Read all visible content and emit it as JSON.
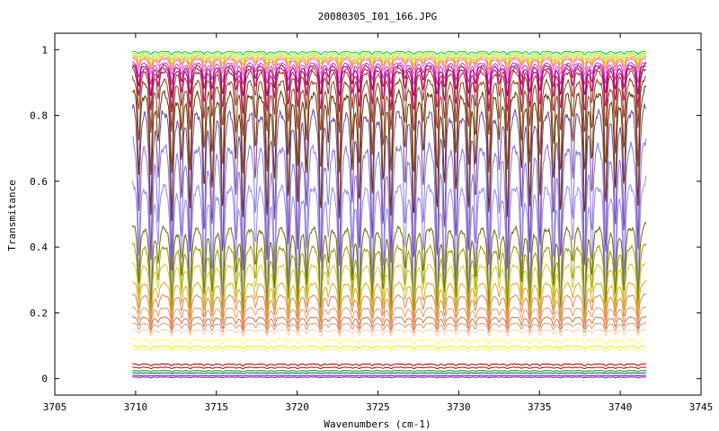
{
  "chart_data": {
    "type": "line",
    "title": "20080305_I01_166.JPG",
    "xlabel": "Wavenumbers (cm-1)",
    "ylabel": "Transmitance",
    "xlim": [
      3705,
      3745
    ],
    "ylim": [
      -0.05,
      1.05
    ],
    "xticks": [
      "3705",
      "3710",
      "3715",
      "3720",
      "3725",
      "3730",
      "3735",
      "3740",
      "3745"
    ],
    "yticks": [
      "0",
      "0.2",
      "0.4",
      "0.6",
      "0.8",
      "1"
    ],
    "x_range": [
      3709.8,
      3741.6
    ],
    "grid": false,
    "legend": "none",
    "series": [
      {
        "color": "#00cc00",
        "baseline": 0.995,
        "depth": 0.01
      },
      {
        "color": "#99ee33",
        "baseline": 0.99,
        "depth": 0.02
      },
      {
        "color": "#ccdd00",
        "baseline": 0.985,
        "depth": 0.03
      },
      {
        "color": "#ff9900",
        "baseline": 0.98,
        "depth": 0.04
      },
      {
        "color": "#ff66cc",
        "baseline": 0.975,
        "depth": 0.05
      },
      {
        "color": "#cc33cc",
        "baseline": 0.965,
        "depth": 0.07
      },
      {
        "color": "#990066",
        "baseline": 0.96,
        "depth": 0.1
      },
      {
        "color": "#cc0066",
        "baseline": 0.955,
        "depth": 0.14
      },
      {
        "color": "#993333",
        "baseline": 0.95,
        "depth": 0.2
      },
      {
        "color": "#884422",
        "baseline": 0.93,
        "depth": 0.3
      },
      {
        "color": "#663300",
        "baseline": 0.9,
        "depth": 0.4
      },
      {
        "color": "#774499",
        "baseline": 0.85,
        "depth": 0.5
      },
      {
        "color": "#8877dd",
        "baseline": 0.75,
        "depth": 0.55
      },
      {
        "color": "#9988ee",
        "baseline": 0.62,
        "depth": 0.45
      },
      {
        "color": "#6b6b00",
        "baseline": 0.48,
        "depth": 0.28
      },
      {
        "color": "#999900",
        "baseline": 0.42,
        "depth": 0.25
      },
      {
        "color": "#cccc33",
        "baseline": 0.36,
        "depth": 0.18
      },
      {
        "color": "#ddaa22",
        "baseline": 0.3,
        "depth": 0.12
      },
      {
        "color": "#dd8855",
        "baseline": 0.26,
        "depth": 0.09
      },
      {
        "color": "#ee9966",
        "baseline": 0.22,
        "depth": 0.06
      },
      {
        "color": "#cc7744",
        "baseline": 0.19,
        "depth": 0.04
      },
      {
        "color": "#dd9977",
        "baseline": 0.17,
        "depth": 0.03
      },
      {
        "color": "#ffccaa",
        "baseline": 0.15,
        "depth": 0.02
      },
      {
        "color": "#ffff66",
        "baseline": 0.12,
        "depth": 0.015
      },
      {
        "color": "#eeee00",
        "baseline": 0.1,
        "depth": 0.01
      },
      {
        "color": "#ffee99",
        "baseline": 0.09,
        "depth": 0.008
      },
      {
        "color": "#990000",
        "baseline": 0.045,
        "depth": 0.006
      },
      {
        "color": "#cc0000",
        "baseline": 0.035,
        "depth": 0.005
      },
      {
        "color": "#009933",
        "baseline": 0.025,
        "depth": 0.004
      },
      {
        "color": "#006633",
        "baseline": 0.018,
        "depth": 0.003
      },
      {
        "color": "#3333cc",
        "baseline": 0.01,
        "depth": 0.002
      },
      {
        "color": "#9900cc",
        "baseline": 0.005,
        "depth": 0.002
      }
    ]
  }
}
